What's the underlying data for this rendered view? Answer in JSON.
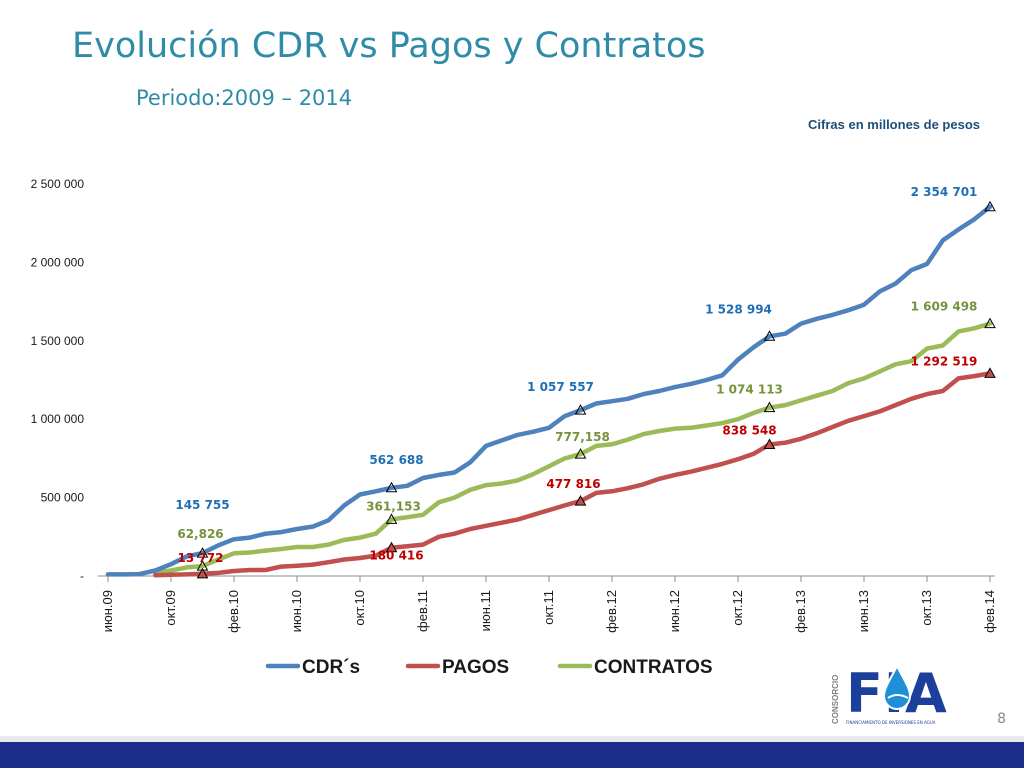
{
  "slide": {
    "title": "Evolución CDR vs Pagos y Contratos",
    "subtitle": "Periodo:2009 – 2014",
    "note": "Cifras en millones de pesos",
    "page_number": "8"
  },
  "logo": {
    "text": "FIA",
    "vertical_text": "CONSORCIO",
    "subtext": "FINANCIAMIENTO DE INVERSIONES EN AGUA"
  },
  "colors": {
    "cdr": "#4f81bd",
    "pagos": "#c0504d",
    "contratos": "#9bbb59",
    "cdr_label": "#1f6fb4",
    "pagos_label": "#c00000",
    "contratos_label": "#76923c",
    "title": "#2f8ca8"
  },
  "chart_data": {
    "type": "line",
    "x_tick_labels": [
      "июн.09",
      "окт.09",
      "фев.10",
      "июн.10",
      "окт.10",
      "фев.11",
      "июн.11",
      "окт.11",
      "фев.12",
      "июн.12",
      "окт.12",
      "фев.13",
      "июн.13",
      "окт.13",
      "фев.14"
    ],
    "x_tick_index": [
      0,
      4,
      8,
      12,
      16,
      20,
      24,
      28,
      32,
      36,
      40,
      44,
      48,
      52,
      56
    ],
    "y_ticks": [
      {
        "value": 0,
        "label": "-"
      },
      {
        "value": 500000,
        "label": "500 000"
      },
      {
        "value": 1000000,
        "label": "1 000 000"
      },
      {
        "value": 1500000,
        "label": "1 500 000"
      },
      {
        "value": 2000000,
        "label": "2 000 000"
      },
      {
        "value": 2500000,
        "label": "2 500 000"
      }
    ],
    "ylim": [
      0,
      2500000
    ],
    "legend_position": "bottom",
    "series": [
      {
        "name": "CDR´s",
        "key": "cdr",
        "values": [
          10000,
          10000,
          12000,
          35000,
          75000,
          125000,
          145755,
          195000,
          235000,
          245000,
          270000,
          280000,
          300000,
          315000,
          355000,
          450000,
          520000,
          540000,
          562688,
          575000,
          625000,
          645000,
          660000,
          725000,
          830000,
          865000,
          900000,
          920000,
          945000,
          1020000,
          1057557,
          1100000,
          1115000,
          1130000,
          1160000,
          1180000,
          1205000,
          1225000,
          1250000,
          1280000,
          1380000,
          1460000,
          1528994,
          1545000,
          1610000,
          1640000,
          1665000,
          1695000,
          1730000,
          1815000,
          1865000,
          1950000,
          1990000,
          2140000,
          2210000,
          2275000,
          2354701
        ]
      },
      {
        "name": "PAGOS",
        "key": "pagos",
        "values": [
          null,
          null,
          null,
          5000,
          8000,
          10000,
          13772,
          20000,
          32000,
          38000,
          38000,
          60000,
          65000,
          73000,
          88000,
          105000,
          115000,
          130000,
          180416,
          190000,
          200000,
          250000,
          270000,
          300000,
          320000,
          340000,
          360000,
          390000,
          420000,
          450000,
          477816,
          530000,
          540000,
          560000,
          585000,
          620000,
          645000,
          665000,
          690000,
          715000,
          745000,
          780000,
          838548,
          850000,
          875000,
          910000,
          950000,
          990000,
          1020000,
          1050000,
          1090000,
          1130000,
          1160000,
          1180000,
          1260000,
          1275000,
          1292519
        ]
      },
      {
        "name": "CONTRATOS",
        "key": "contratos",
        "values": [
          null,
          null,
          null,
          20000,
          35000,
          55000,
          62826,
          105000,
          145000,
          150000,
          162000,
          172000,
          185000,
          185000,
          200000,
          230000,
          245000,
          270000,
          361153,
          375000,
          390000,
          470000,
          500000,
          550000,
          580000,
          590000,
          610000,
          650000,
          700000,
          750000,
          777158,
          830000,
          840000,
          870000,
          905000,
          925000,
          940000,
          945000,
          960000,
          975000,
          1000000,
          1040000,
          1074113,
          1090000,
          1120000,
          1150000,
          1180000,
          1230000,
          1260000,
          1305000,
          1350000,
          1370000,
          1450000,
          1470000,
          1560000,
          1580000,
          1609498
        ]
      }
    ],
    "annotations": [
      {
        "series": "cdr",
        "index": 6,
        "label": "145 755"
      },
      {
        "series": "contratos",
        "index": 6,
        "label": "62,826"
      },
      {
        "series": "pagos",
        "index": 6,
        "label": "13 772"
      },
      {
        "series": "cdr",
        "index": 18,
        "label": "562 688"
      },
      {
        "series": "contratos",
        "index": 18,
        "label": "361,153"
      },
      {
        "series": "pagos",
        "index": 18,
        "label": "180 416"
      },
      {
        "series": "cdr",
        "index": 30,
        "label": "1 057 557"
      },
      {
        "series": "contratos",
        "index": 30,
        "label": "777,158"
      },
      {
        "series": "pagos",
        "index": 30,
        "label": "477 816"
      },
      {
        "series": "cdr",
        "index": 42,
        "label": "1 528 994"
      },
      {
        "series": "contratos",
        "index": 42,
        "label": "1 074 113"
      },
      {
        "series": "pagos",
        "index": 42,
        "label": "838 548"
      },
      {
        "series": "cdr",
        "index": 56,
        "label": "2 354 701"
      },
      {
        "series": "contratos",
        "index": 56,
        "label": "1 609 498"
      },
      {
        "series": "pagos",
        "index": 56,
        "label": "1 292 519"
      }
    ]
  }
}
